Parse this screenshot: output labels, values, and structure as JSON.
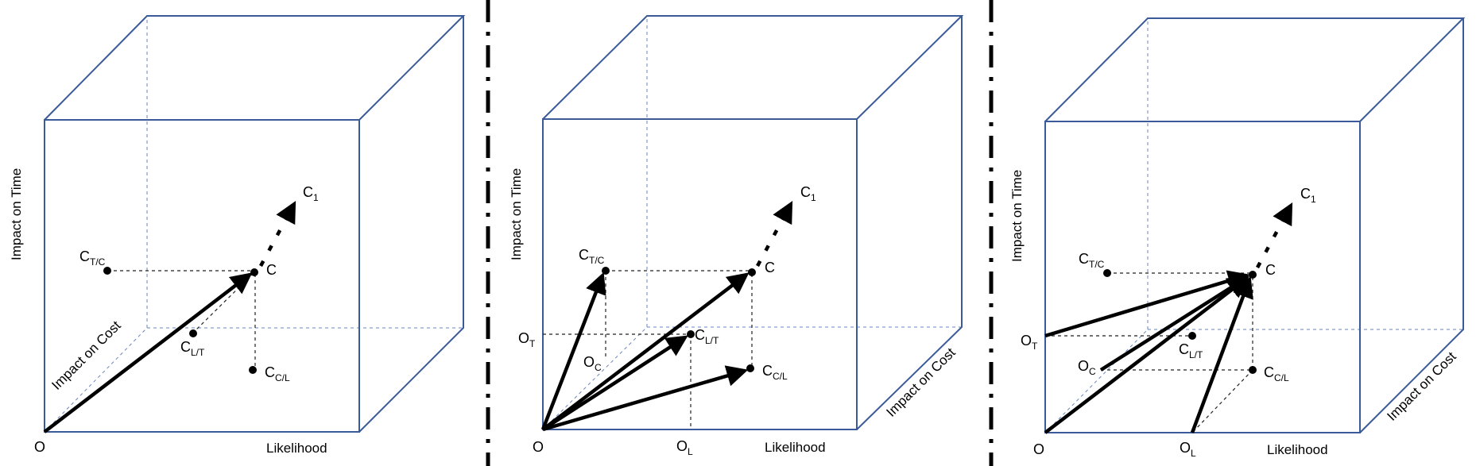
{
  "panels": [
    {
      "origin_label": "O",
      "x_axis": "Likelihood",
      "y_axis": "Impact on Time",
      "z_axis": "Impact on Cost",
      "points": {
        "C": "C",
        "C1": {
          "base": "C",
          "sub": "1"
        },
        "CTC": {
          "base": "C",
          "sub": "T/C"
        },
        "CLT": {
          "base": "C",
          "sub": "L/T"
        },
        "CCL": {
          "base": "C",
          "sub": "C/L"
        }
      }
    },
    {
      "origin_label": "O",
      "x_axis": "Likelihood",
      "y_axis": "Impact on Time",
      "z_axis": "Impact on Cost",
      "points": {
        "C": "C",
        "C1": {
          "base": "C",
          "sub": "1"
        },
        "CTC": {
          "base": "C",
          "sub": "T/C"
        },
        "CLT": {
          "base": "C",
          "sub": "L/T"
        },
        "CCL": {
          "base": "C",
          "sub": "C/L"
        },
        "OT": {
          "base": "O",
          "sub": "T"
        },
        "OC": {
          "base": "O",
          "sub": "C"
        },
        "OL": {
          "base": "O",
          "sub": "L"
        }
      }
    },
    {
      "origin_label": "O",
      "x_axis": "Likelihood",
      "y_axis": "Impact on Time",
      "z_axis": "Impact on Cost",
      "points": {
        "C": "C",
        "C1": {
          "base": "C",
          "sub": "1"
        },
        "CTC": {
          "base": "C",
          "sub": "T/C"
        },
        "CLT": {
          "base": "C",
          "sub": "L/T"
        },
        "CCL": {
          "base": "C",
          "sub": "C/L"
        },
        "OT": {
          "base": "O",
          "sub": "T"
        },
        "OC": {
          "base": "O",
          "sub": "C"
        },
        "OL": {
          "base": "O",
          "sub": "L"
        }
      }
    }
  ]
}
